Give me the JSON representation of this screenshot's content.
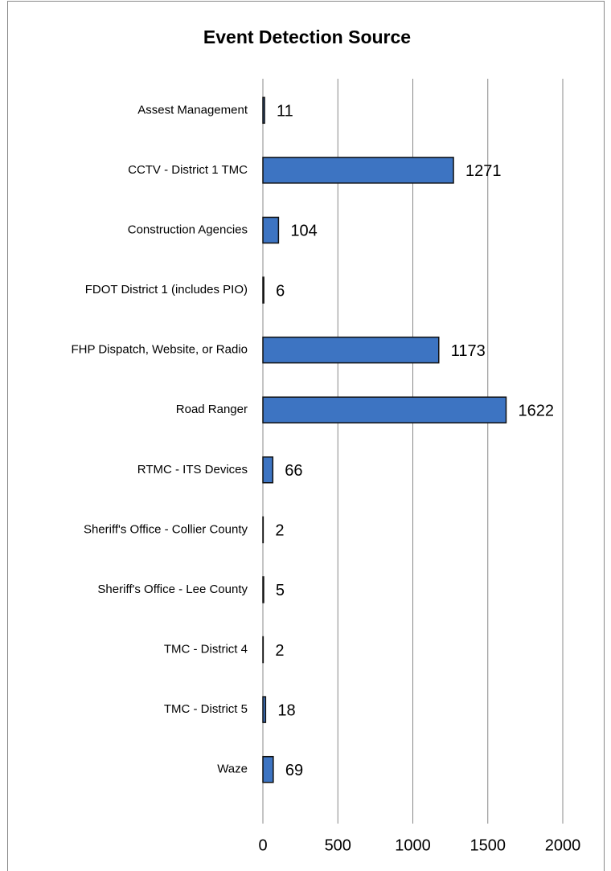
{
  "chart_data": {
    "type": "bar",
    "orientation": "horizontal",
    "title": "Event Detection Source",
    "categories": [
      "Assest Management",
      "CCTV - District 1 TMC",
      "Construction Agencies",
      "FDOT District 1 (includes PIO)",
      "FHP Dispatch, Website, or Radio",
      "Road Ranger",
      "RTMC - ITS Devices",
      "Sheriff's Office - Collier County",
      "Sheriff's Office - Lee County",
      "TMC - District 4",
      "TMC - District 5",
      "Waze"
    ],
    "values": [
      11,
      1271,
      104,
      6,
      1173,
      1622,
      66,
      2,
      5,
      2,
      18,
      69
    ],
    "color": "#3d74c2",
    "xlim": [
      0,
      2000
    ],
    "xticks": [
      0,
      500,
      1000,
      1500,
      2000
    ],
    "grid": true
  }
}
